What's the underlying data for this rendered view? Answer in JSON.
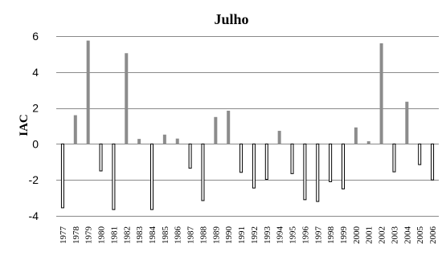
{
  "chart_data": {
    "type": "bar",
    "title": "Julho",
    "ylabel": "IAC",
    "xlabel": "",
    "ylim": [
      -4,
      6
    ],
    "yticks": [
      6,
      4,
      2,
      0,
      -2,
      -4
    ],
    "grid": true,
    "categories": [
      "1977",
      "1978",
      "1979",
      "1980",
      "1981",
      "1982",
      "1983",
      "1984",
      "1985",
      "1986",
      "1987",
      "1988",
      "1989",
      "1990",
      "1991",
      "1992",
      "1993",
      "1994",
      "1995",
      "1996",
      "1997",
      "1998",
      "1999",
      "2000",
      "2001",
      "2002",
      "2003",
      "2004",
      "2005",
      "2006"
    ],
    "values": [
      -3.55,
      1.6,
      5.75,
      -1.5,
      -3.65,
      5.05,
      0.28,
      -3.65,
      0.52,
      0.3,
      -1.35,
      -3.15,
      1.5,
      1.85,
      -1.58,
      -2.45,
      -1.97,
      0.73,
      -1.65,
      -3.1,
      -3.2,
      -2.1,
      -2.5,
      0.92,
      0.15,
      5.6,
      -1.55,
      2.35,
      -1.15,
      -2.0
    ],
    "colors": {
      "positive": "#8c8c8c",
      "negative_fill": "#ffffff",
      "negative_stroke": "#000000",
      "grid": "#8a8a8a"
    }
  }
}
